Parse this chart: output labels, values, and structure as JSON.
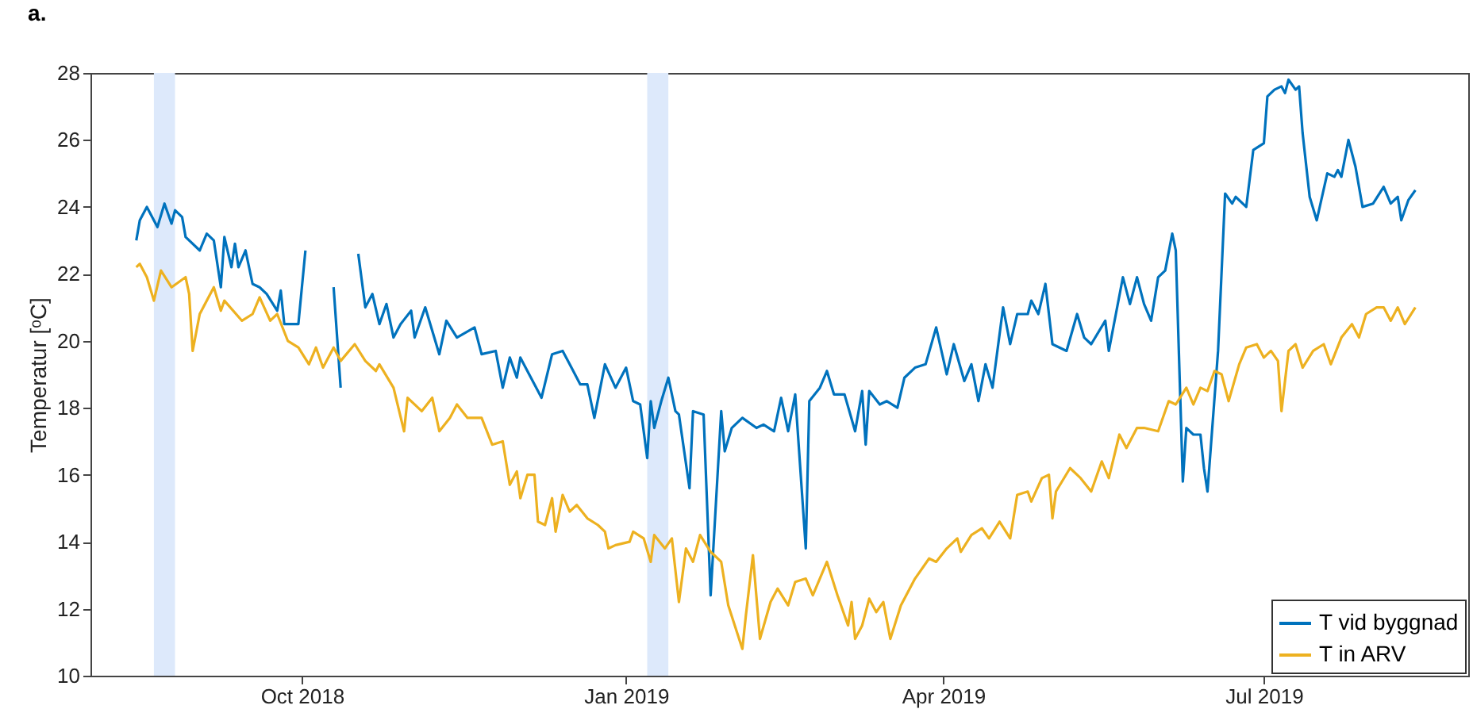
{
  "chart_data": {
    "type": "line",
    "title": "a.",
    "ylabel": "Temperatur [ᵒC]",
    "xlim": [
      "2018-08-02",
      "2019-08-28"
    ],
    "xticks": [
      {
        "value": "2018-10-01",
        "label": "Oct 2018"
      },
      {
        "value": "2019-01-01",
        "label": "Jan 2019"
      },
      {
        "value": "2019-04-01",
        "label": "Apr 2019"
      },
      {
        "value": "2019-07-01",
        "label": "Jul 2019"
      }
    ],
    "ylim": [
      10,
      28
    ],
    "yticks": [
      10,
      12,
      14,
      16,
      18,
      20,
      22,
      24,
      26,
      28
    ],
    "grid": false,
    "legend": "bottom right",
    "line_style": "solid",
    "marker": "none",
    "bands": [
      {
        "axis": "x",
        "from": "2018-08-20",
        "to": "2018-08-26",
        "color": "#dde9fb"
      },
      {
        "axis": "x",
        "from": "2019-01-07",
        "to": "2019-01-13",
        "color": "#dde9fb"
      }
    ],
    "series": [
      {
        "name": "T vid byggnad",
        "color": "#0072bd",
        "x": [
          "2018-08-15",
          "2018-08-16",
          "2018-08-18",
          "2018-08-21",
          "2018-08-23",
          "2018-08-25",
          "2018-08-26",
          "2018-08-28",
          "2018-08-29",
          "2018-09-02",
          "2018-09-04",
          "2018-09-06",
          "2018-09-08",
          "2018-09-09",
          "2018-09-11",
          "2018-09-12",
          "2018-09-13",
          "2018-09-15",
          "2018-09-17",
          "2018-09-19",
          "2018-09-21",
          "2018-09-24",
          "2018-09-25",
          "2018-09-26",
          "2018-09-30",
          "2018-10-02",
          "2018-10-05",
          "2018-10-10",
          "2018-10-12",
          "2018-10-14",
          "2018-10-17",
          "2018-10-19",
          "2018-10-21",
          "2018-10-23",
          "2018-10-25",
          "2018-10-27",
          "2018-10-29",
          "2018-11-01",
          "2018-11-02",
          "2018-11-05",
          "2018-11-09",
          "2018-11-11",
          "2018-11-14",
          "2018-11-19",
          "2018-11-21",
          "2018-11-25",
          "2018-11-27",
          "2018-11-29",
          "2018-12-01",
          "2018-12-02",
          "2018-12-05",
          "2018-12-08",
          "2018-12-11",
          "2018-12-14",
          "2018-12-16",
          "2018-12-19",
          "2018-12-21",
          "2018-12-23",
          "2018-12-26",
          "2018-12-29",
          "2019-01-01",
          "2019-01-03",
          "2019-01-05",
          "2019-01-07",
          "2019-01-08",
          "2019-01-09",
          "2019-01-11",
          "2019-01-13",
          "2019-01-15",
          "2019-01-16",
          "2019-01-19",
          "2019-01-20",
          "2019-01-23",
          "2019-01-25",
          "2019-01-28",
          "2019-01-29",
          "2019-01-31",
          "2019-02-03",
          "2019-02-07",
          "2019-02-09",
          "2019-02-12",
          "2019-02-14",
          "2019-02-16",
          "2019-02-18",
          "2019-02-21",
          "2019-02-22",
          "2019-02-25",
          "2019-02-27",
          "2019-03-01",
          "2019-03-04",
          "2019-03-07",
          "2019-03-09",
          "2019-03-10",
          "2019-03-11",
          "2019-03-14",
          "2019-03-16",
          "2019-03-19",
          "2019-03-21",
          "2019-03-24",
          "2019-03-27",
          "2019-03-30",
          "2019-04-02",
          "2019-04-04",
          "2019-04-07",
          "2019-04-09",
          "2019-04-11",
          "2019-04-13",
          "2019-04-15",
          "2019-04-18",
          "2019-04-20",
          "2019-04-22",
          "2019-04-25",
          "2019-04-26",
          "2019-04-28",
          "2019-04-30",
          "2019-05-02",
          "2019-05-06",
          "2019-05-09",
          "2019-05-11",
          "2019-05-13",
          "2019-05-17",
          "2019-05-18",
          "2019-05-22",
          "2019-05-24",
          "2019-05-26",
          "2019-05-28",
          "2019-05-30",
          "2019-06-01",
          "2019-06-03",
          "2019-06-05",
          "2019-06-06",
          "2019-06-08",
          "2019-06-09",
          "2019-06-11",
          "2019-06-13",
          "2019-06-14",
          "2019-06-15",
          "2019-06-18",
          "2019-06-20",
          "2019-06-22",
          "2019-06-23",
          "2019-06-26",
          "2019-06-28",
          "2019-07-01",
          "2019-07-02",
          "2019-07-04",
          "2019-07-06",
          "2019-07-07",
          "2019-07-08",
          "2019-07-10",
          "2019-07-11",
          "2019-07-12",
          "2019-07-14",
          "2019-07-16",
          "2019-07-19",
          "2019-07-21",
          "2019-07-22",
          "2019-07-23",
          "2019-07-25",
          "2019-07-27",
          "2019-07-29",
          "2019-08-01",
          "2019-08-04",
          "2019-08-06",
          "2019-08-08",
          "2019-08-09",
          "2019-08-11",
          "2019-08-13"
        ],
        "values": [
          23.0,
          23.6,
          24.0,
          23.4,
          24.1,
          23.5,
          23.9,
          23.7,
          23.1,
          22.7,
          23.2,
          23.0,
          21.6,
          23.1,
          22.2,
          22.9,
          22.2,
          22.7,
          21.7,
          21.6,
          21.4,
          20.9,
          21.5,
          20.5,
          20.5,
          22.7,
          null,
          21.6,
          18.6,
          null,
          22.6,
          21.0,
          21.4,
          20.5,
          21.1,
          20.1,
          20.5,
          20.9,
          20.1,
          21.0,
          19.6,
          20.6,
          20.1,
          20.4,
          19.6,
          19.7,
          18.6,
          19.5,
          18.9,
          19.5,
          18.9,
          18.3,
          19.6,
          19.7,
          19.3,
          18.7,
          18.7,
          17.7,
          19.3,
          18.6,
          19.2,
          18.2,
          18.1,
          16.5,
          18.2,
          17.4,
          18.2,
          18.9,
          17.9,
          17.8,
          15.6,
          17.9,
          17.8,
          12.4,
          17.9,
          16.7,
          17.4,
          17.7,
          17.4,
          17.5,
          17.3,
          18.3,
          17.3,
          18.4,
          13.8,
          18.2,
          18.6,
          19.1,
          18.4,
          18.4,
          17.3,
          18.5,
          16.9,
          18.5,
          18.1,
          18.2,
          18.0,
          18.9,
          19.2,
          19.3,
          20.4,
          19.0,
          19.9,
          18.8,
          19.3,
          18.2,
          19.3,
          18.6,
          21.0,
          19.9,
          20.8,
          20.8,
          21.2,
          20.8,
          21.7,
          19.9,
          19.7,
          20.8,
          20.1,
          19.9,
          20.6,
          19.7,
          21.9,
          21.1,
          21.9,
          21.1,
          20.6,
          21.9,
          22.1,
          23.2,
          22.7,
          15.8,
          17.4,
          17.2,
          17.2,
          16.2,
          15.5,
          19.7,
          24.4,
          24.1,
          24.3,
          24.0,
          25.7,
          25.9,
          27.3,
          27.5,
          27.6,
          27.4,
          27.8,
          27.5,
          27.6,
          26.2,
          24.3,
          23.6,
          25.0,
          24.9,
          25.1,
          24.9,
          26.0,
          25.2,
          24.0,
          24.1,
          24.6,
          24.1,
          24.3,
          23.6,
          24.2,
          24.5
        ]
      },
      {
        "name": "T in ARV",
        "color": "#edb120",
        "x": [
          "2018-08-15",
          "2018-08-16",
          "2018-08-18",
          "2018-08-20",
          "2018-08-22",
          "2018-08-25",
          "2018-08-29",
          "2018-08-30",
          "2018-08-31",
          "2018-09-02",
          "2018-09-06",
          "2018-09-08",
          "2018-09-09",
          "2018-09-14",
          "2018-09-17",
          "2018-09-19",
          "2018-09-22",
          "2018-09-24",
          "2018-09-27",
          "2018-09-30",
          "2018-10-03",
          "2018-10-05",
          "2018-10-07",
          "2018-10-10",
          "2018-10-12",
          "2018-10-16",
          "2018-10-19",
          "2018-10-22",
          "2018-10-23",
          "2018-10-27",
          "2018-10-30",
          "2018-10-31",
          "2018-11-04",
          "2018-11-07",
          "2018-11-09",
          "2018-11-12",
          "2018-11-14",
          "2018-11-17",
          "2018-11-21",
          "2018-11-24",
          "2018-11-27",
          "2018-11-29",
          "2018-12-01",
          "2018-12-02",
          "2018-12-04",
          "2018-12-06",
          "2018-12-07",
          "2018-12-09",
          "2018-12-11",
          "2018-12-12",
          "2018-12-14",
          "2018-12-16",
          "2018-12-18",
          "2018-12-21",
          "2018-12-24",
          "2018-12-26",
          "2018-12-27",
          "2018-12-29",
          "2019-01-02",
          "2019-01-03",
          "2019-01-06",
          "2019-01-08",
          "2019-01-09",
          "2019-01-12",
          "2019-01-14",
          "2019-01-16",
          "2019-01-18",
          "2019-01-20",
          "2019-01-22",
          "2019-01-25",
          "2019-01-28",
          "2019-01-30",
          "2019-02-03",
          "2019-02-04",
          "2019-02-06",
          "2019-02-08",
          "2019-02-11",
          "2019-02-13",
          "2019-02-16",
          "2019-02-18",
          "2019-02-21",
          "2019-02-23",
          "2019-02-27",
          "2019-03-02",
          "2019-03-05",
          "2019-03-06",
          "2019-03-07",
          "2019-03-09",
          "2019-03-11",
          "2019-03-13",
          "2019-03-15",
          "2019-03-17",
          "2019-03-20",
          "2019-03-24",
          "2019-03-28",
          "2019-03-30",
          "2019-04-02",
          "2019-04-05",
          "2019-04-06",
          "2019-04-09",
          "2019-04-12",
          "2019-04-14",
          "2019-04-17",
          "2019-04-20",
          "2019-04-22",
          "2019-04-25",
          "2019-04-26",
          "2019-04-29",
          "2019-05-01",
          "2019-05-02",
          "2019-05-03",
          "2019-05-07",
          "2019-05-10",
          "2019-05-13",
          "2019-05-16",
          "2019-05-18",
          "2019-05-21",
          "2019-05-23",
          "2019-05-26",
          "2019-05-28",
          "2019-06-01",
          "2019-06-04",
          "2019-06-06",
          "2019-06-09",
          "2019-06-11",
          "2019-06-13",
          "2019-06-15",
          "2019-06-17",
          "2019-06-19",
          "2019-06-21",
          "2019-06-24",
          "2019-06-26",
          "2019-06-29",
          "2019-07-01",
          "2019-07-03",
          "2019-07-05",
          "2019-07-06",
          "2019-07-08",
          "2019-07-10",
          "2019-07-12",
          "2019-07-15",
          "2019-07-18",
          "2019-07-20",
          "2019-07-23",
          "2019-07-26",
          "2019-07-28",
          "2019-07-30",
          "2019-08-02",
          "2019-08-04",
          "2019-08-06",
          "2019-08-08",
          "2019-08-10",
          "2019-08-13"
        ],
        "values": [
          22.2,
          22.3,
          21.9,
          21.2,
          22.1,
          21.6,
          21.9,
          21.4,
          19.7,
          20.8,
          21.6,
          20.9,
          21.2,
          20.6,
          20.8,
          21.3,
          20.6,
          20.8,
          20.0,
          19.8,
          19.3,
          19.8,
          19.2,
          19.8,
          19.4,
          19.9,
          19.4,
          19.1,
          19.3,
          18.6,
          17.3,
          18.3,
          17.9,
          18.3,
          17.3,
          17.7,
          18.1,
          17.7,
          17.7,
          16.9,
          17.0,
          15.7,
          16.1,
          15.3,
          16.0,
          16.0,
          14.6,
          14.5,
          15.3,
          14.3,
          15.4,
          14.9,
          15.1,
          14.7,
          14.5,
          14.3,
          13.8,
          13.9,
          14.0,
          14.3,
          14.1,
          13.4,
          14.2,
          13.8,
          14.1,
          12.2,
          13.8,
          13.4,
          14.2,
          13.7,
          13.4,
          12.1,
          10.8,
          11.8,
          13.6,
          11.1,
          12.2,
          12.6,
          12.1,
          12.8,
          12.9,
          12.4,
          13.4,
          12.4,
          11.5,
          12.2,
          11.1,
          11.5,
          12.3,
          11.9,
          12.2,
          11.1,
          12.1,
          12.9,
          13.5,
          13.4,
          13.8,
          14.1,
          13.7,
          14.2,
          14.4,
          14.1,
          14.6,
          14.1,
          15.4,
          15.5,
          15.2,
          15.9,
          16.0,
          14.7,
          15.5,
          16.2,
          15.9,
          15.5,
          16.4,
          15.9,
          17.2,
          16.8,
          17.4,
          17.4,
          17.3,
          18.2,
          18.1,
          18.6,
          18.1,
          18.6,
          18.5,
          19.1,
          19.0,
          18.2,
          19.3,
          19.8,
          19.9,
          19.5,
          19.7,
          19.4,
          17.9,
          19.7,
          19.9,
          19.2,
          19.7,
          19.9,
          19.3,
          20.1,
          20.5,
          20.1,
          20.8,
          21.0,
          21.0,
          20.6,
          21.0,
          20.5,
          21.0
        ]
      }
    ]
  }
}
